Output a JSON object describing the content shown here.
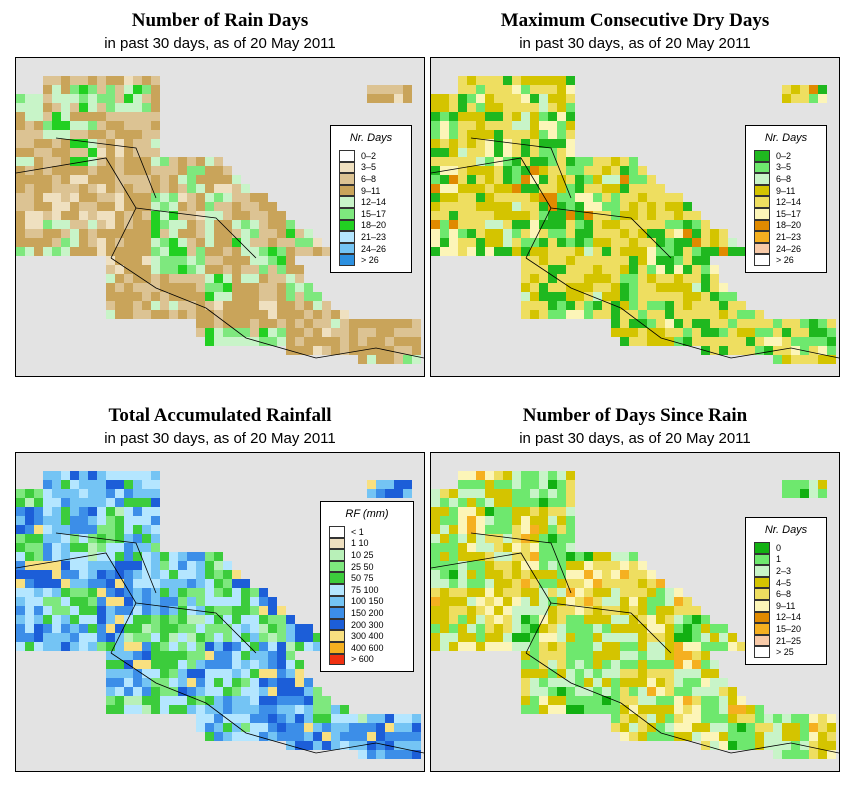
{
  "panels": [
    {
      "id": "rain-days",
      "title": "Number of Rain Days",
      "subtitle": "in past 30 days, as of  20 May 2011",
      "legend": {
        "title": "Nr. Days",
        "items": [
          {
            "label": "0–2",
            "color": "#ffffff"
          },
          {
            "label": "3–5",
            "color": "#efe0c0"
          },
          {
            "label": "6–8",
            "color": "#dcc393"
          },
          {
            "label": "9–11",
            "color": "#c9a45a"
          },
          {
            "label": "12–14",
            "color": "#c8f4c8"
          },
          {
            "label": "15–17",
            "color": "#7ee87e"
          },
          {
            "label": "18–20",
            "color": "#22d022"
          },
          {
            "label": "21–23",
            "color": "#b4e6ff"
          },
          {
            "label": "24–26",
            "color": "#74c4f4"
          },
          {
            "label": "> 26",
            "color": "#2c90e0"
          }
        ]
      }
    },
    {
      "id": "dry-days",
      "title": "Maximum Consecutive Dry Days",
      "subtitle": "in past 30 days, as of  20 May 2011",
      "legend": {
        "title": "Nr. Days",
        "items": [
          {
            "label": "0–2",
            "color": "#1fb81f"
          },
          {
            "label": "3–5",
            "color": "#6ee86e"
          },
          {
            "label": "6–8",
            "color": "#c8f4c8"
          },
          {
            "label": "9–11",
            "color": "#d4c400"
          },
          {
            "label": "12–14",
            "color": "#eede60"
          },
          {
            "label": "15–17",
            "color": "#fcf5b8"
          },
          {
            "label": "18–20",
            "color": "#e08a00"
          },
          {
            "label": "21–23",
            "color": "#f5b020"
          },
          {
            "label": "24–26",
            "color": "#f8caa8"
          },
          {
            "label": "> 26",
            "color": "#ffffff"
          }
        ]
      }
    },
    {
      "id": "total-rainfall",
      "title": "Total Accumulated Rainfall",
      "subtitle": "in past 30 days, as of  20 May 2011",
      "legend": {
        "title": "RF (mm)",
        "items": [
          {
            "label": "< 1",
            "color": "#ffffff"
          },
          {
            "label": "1    10",
            "color": "#efe0c0"
          },
          {
            "label": "10   25",
            "color": "#b8f0b8"
          },
          {
            "label": "25   50",
            "color": "#7ee87e"
          },
          {
            "label": "50   75",
            "color": "#3ccc3c"
          },
          {
            "label": "75   100",
            "color": "#b4e6ff"
          },
          {
            "label": "100  150",
            "color": "#74c4f4"
          },
          {
            "label": "150  200",
            "color": "#3c8ee8"
          },
          {
            "label": "200  300",
            "color": "#1c5ed8"
          },
          {
            "label": "300  400",
            "color": "#f8e080"
          },
          {
            "label": "400  600",
            "color": "#f5b020"
          },
          {
            "label": "> 600",
            "color": "#f03010"
          }
        ]
      }
    },
    {
      "id": "days-since-rain",
      "title": "Number of Days Since Rain",
      "subtitle": "in past 30 days, as of  20 May 2011",
      "legend": {
        "title": "Nr. Days",
        "items": [
          {
            "label": "0",
            "color": "#12b012"
          },
          {
            "label": "1",
            "color": "#6ee86e"
          },
          {
            "label": "2–3",
            "color": "#c8f4c8"
          },
          {
            "label": "4–5",
            "color": "#d4c400"
          },
          {
            "label": "6–8",
            "color": "#eede60"
          },
          {
            "label": "9–11",
            "color": "#fcf5b8"
          },
          {
            "label": "12–14",
            "color": "#e08a00"
          },
          {
            "label": "15–20",
            "color": "#f5b020"
          },
          {
            "label": "21–25",
            "color": "#f8caa8"
          },
          {
            "label": "> 25",
            "color": "#ffffff"
          }
        ]
      }
    }
  ]
}
